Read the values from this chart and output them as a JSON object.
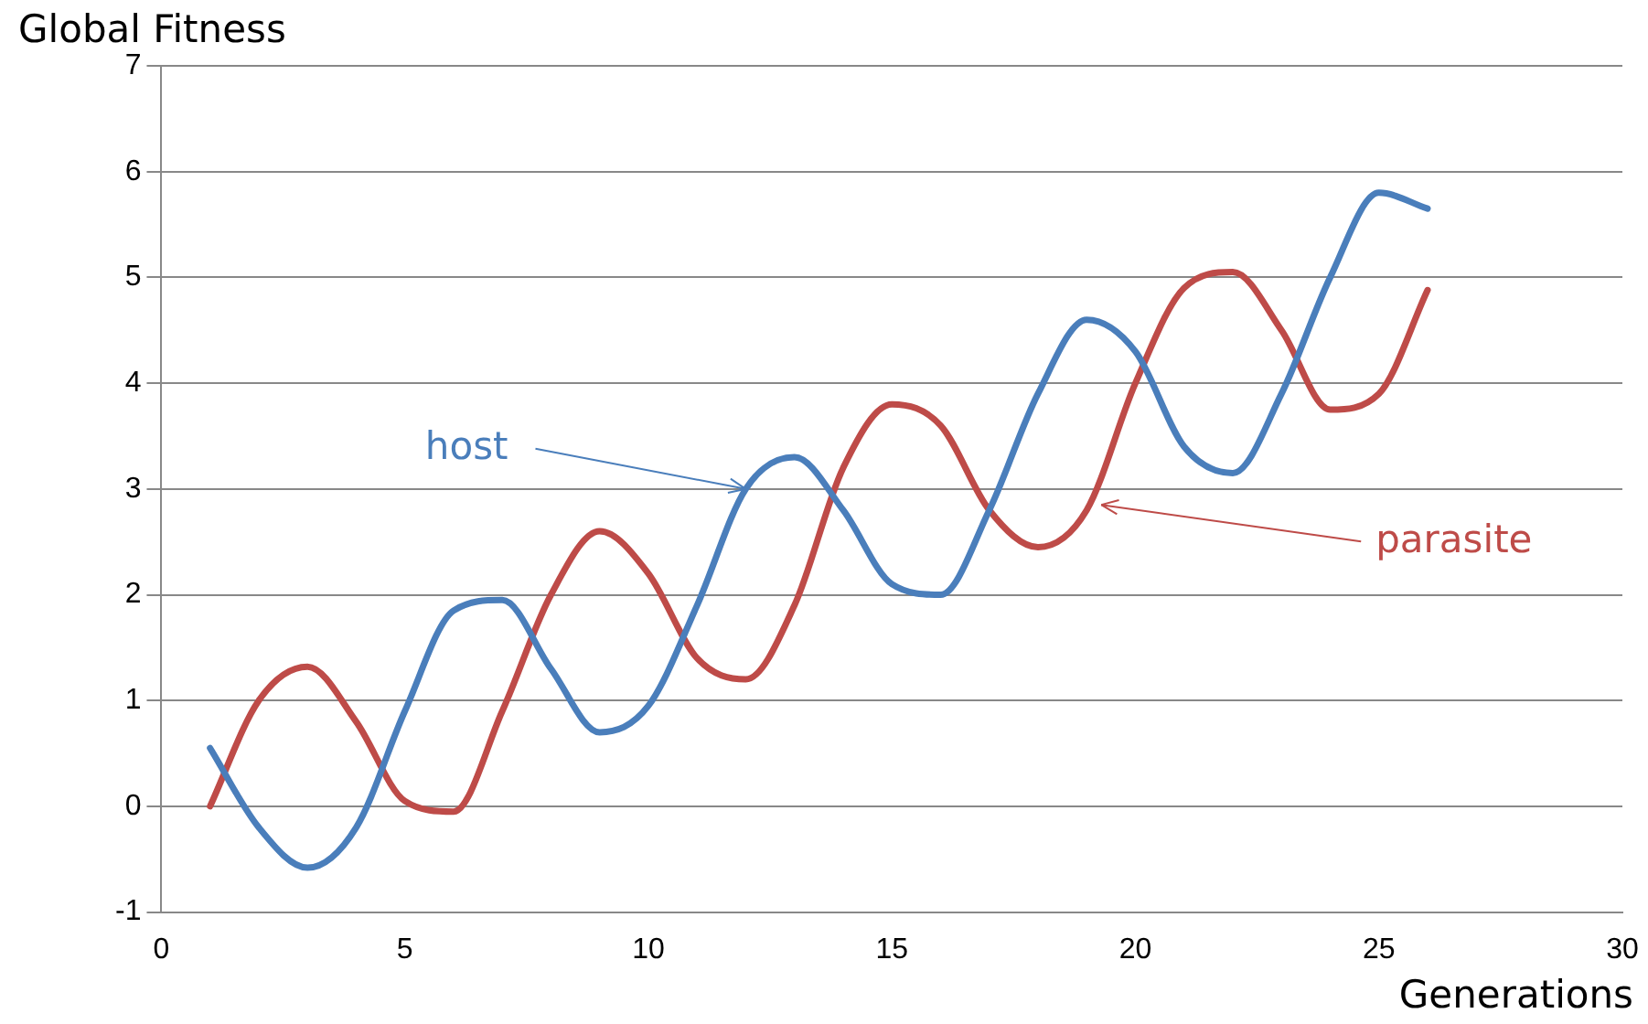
{
  "chart_data": {
    "type": "line",
    "ylabel": "Global Fitness",
    "xlabel": "Generations",
    "x": [
      1,
      2,
      3,
      4,
      5,
      6,
      7,
      8,
      9,
      10,
      11,
      12,
      13,
      14,
      15,
      16,
      17,
      18,
      19,
      20,
      21,
      22,
      23,
      24,
      25,
      26
    ],
    "series": [
      {
        "color": "#4a7ebb",
        "values": [
          0.55,
          -0.2,
          -0.58,
          -0.2,
          0.9,
          1.85,
          1.95,
          1.3,
          0.7,
          0.95,
          1.9,
          3.0,
          3.3,
          2.8,
          2.1,
          2.0,
          2.8,
          3.9,
          4.6,
          4.3,
          3.4,
          3.15,
          3.9,
          5.0,
          5.8,
          5.65
        ]
      },
      {
        "color": "#be4b48",
        "values": [
          0,
          1.0,
          1.32,
          0.8,
          0.05,
          -0.05,
          0.9,
          2.0,
          2.6,
          2.2,
          1.4,
          1.2,
          1.9,
          3.2,
          3.8,
          3.6,
          2.8,
          2.45,
          2.8,
          4.0,
          4.9,
          5.05,
          4.5,
          3.75,
          3.9,
          4.88
        ]
      }
    ],
    "annotations": [
      {
        "text": "host",
        "x": 12,
        "y": 3.0
      },
      {
        "text": "parasite",
        "x": 19.3,
        "y": 2.85
      }
    ],
    "xlim": [
      0,
      30
    ],
    "xticks": [
      0,
      5,
      10,
      15,
      20,
      25,
      30
    ],
    "ylim": [
      -1,
      7
    ],
    "yticks": [
      -1,
      0,
      1,
      2,
      3,
      4,
      5,
      6,
      7
    ],
    "grid": "y",
    "legend": false,
    "marker": "none",
    "line_style": "solid"
  }
}
